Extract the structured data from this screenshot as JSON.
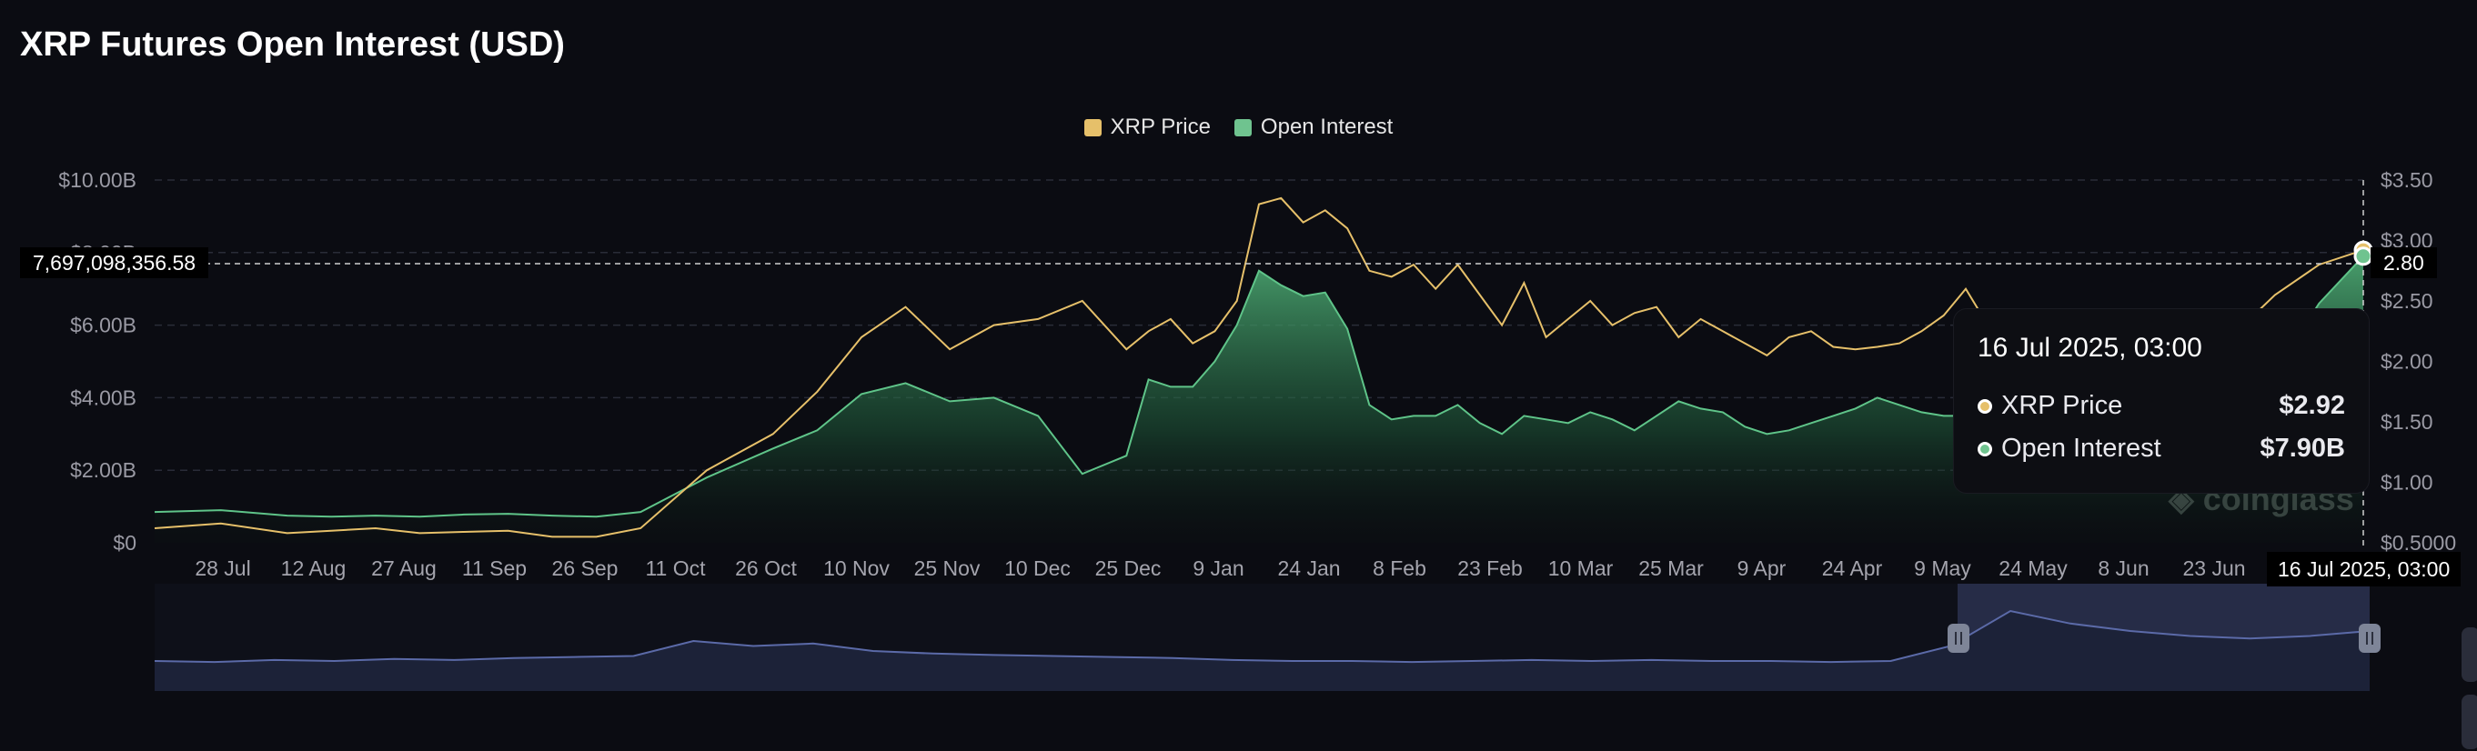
{
  "page_title": "XRP Futures Open Interest (USD)",
  "legend": [
    {
      "label": "XRP Price",
      "color": "#e6c06a"
    },
    {
      "label": "Open Interest",
      "color": "#6fc38f"
    }
  ],
  "crosshair": {
    "left_value": "7,697,098,356.58",
    "right_value": "2.80",
    "date_label": "16 Jul 2025, 03:00"
  },
  "tooltip": {
    "date": "16 Jul 2025, 03:00",
    "rows": [
      {
        "name": "XRP Price",
        "value": "$2.92",
        "color": "#e6c06a"
      },
      {
        "name": "Open Interest",
        "value": "$7.90B",
        "color": "#6fc38f"
      }
    ]
  },
  "watermark": "coinglass",
  "chart_data": {
    "type": "line",
    "title": "XRP Futures Open Interest (USD)",
    "x_ticks": [
      "28 Jul",
      "12 Aug",
      "27 Aug",
      "11 Sep",
      "26 Sep",
      "11 Oct",
      "26 Oct",
      "10 Nov",
      "25 Nov",
      "10 Dec",
      "25 Dec",
      "9 Jan",
      "24 Jan",
      "8 Feb",
      "23 Feb",
      "10 Mar",
      "25 Mar",
      "9 Apr",
      "24 Apr",
      "9 May",
      "24 May",
      "8 Jun",
      "23 Jun"
    ],
    "y_left": {
      "ticks": [
        "$0",
        "$2.00B",
        "$4.00B",
        "$6.00B",
        "$8.00B",
        "$10.00B"
      ],
      "range": [
        0,
        10
      ]
    },
    "y_right": {
      "ticks": [
        "$0.5000",
        "$1.00",
        "$1.50",
        "$2.00",
        "$2.50",
        "$3.00",
        "$3.50"
      ],
      "range": [
        0.5,
        3.5
      ]
    },
    "grid": true,
    "legend_position": "top-center",
    "series": [
      {
        "name": "XRP Price",
        "color": "#e6c06a",
        "x": [
          0,
          3,
          6,
          8,
          10,
          12,
          14,
          16,
          18,
          20,
          22,
          25,
          28,
          30,
          32,
          34,
          36,
          38,
          40,
          42,
          44,
          45,
          46,
          47,
          48,
          49,
          50,
          51,
          52,
          53,
          54,
          55,
          56,
          57,
          58,
          59,
          60,
          61,
          62,
          63,
          64,
          65,
          66,
          67,
          68,
          69,
          70,
          71,
          72,
          73,
          74,
          75,
          76,
          77,
          78,
          79,
          80,
          81,
          82,
          83,
          84,
          86,
          88,
          90,
          92,
          94,
          96,
          98,
          100
        ],
        "values": [
          0.62,
          0.66,
          0.58,
          0.6,
          0.62,
          0.58,
          0.59,
          0.6,
          0.55,
          0.55,
          0.62,
          1.1,
          1.4,
          1.75,
          2.2,
          2.45,
          2.1,
          2.3,
          2.35,
          2.5,
          2.1,
          2.25,
          2.35,
          2.15,
          2.25,
          2.5,
          3.3,
          3.35,
          3.15,
          3.25,
          3.1,
          2.75,
          2.7,
          2.8,
          2.6,
          2.8,
          2.55,
          2.3,
          2.65,
          2.2,
          2.35,
          2.5,
          2.3,
          2.4,
          2.45,
          2.2,
          2.35,
          2.25,
          2.15,
          2.05,
          2.2,
          2.25,
          2.12,
          2.1,
          2.12,
          2.15,
          2.25,
          2.38,
          2.6,
          2.3,
          2.15,
          2.15,
          2.25,
          2.2,
          2.25,
          2.2,
          2.55,
          2.8,
          2.92
        ]
      },
      {
        "name": "Open Interest",
        "color": "#6fc38f",
        "x": [
          0,
          3,
          6,
          8,
          10,
          12,
          14,
          16,
          18,
          20,
          22,
          25,
          28,
          30,
          32,
          34,
          36,
          38,
          40,
          42,
          44,
          45,
          46,
          47,
          48,
          49,
          50,
          51,
          52,
          53,
          54,
          55,
          56,
          57,
          58,
          59,
          60,
          61,
          62,
          63,
          64,
          65,
          66,
          67,
          68,
          69,
          70,
          71,
          72,
          73,
          74,
          75,
          76,
          77,
          78,
          79,
          80,
          81,
          82,
          83,
          84,
          86,
          88,
          90,
          92,
          94,
          96,
          98,
          100
        ],
        "values": [
          0.85,
          0.9,
          0.75,
          0.72,
          0.75,
          0.72,
          0.78,
          0.8,
          0.75,
          0.72,
          0.85,
          1.8,
          2.6,
          3.1,
          4.1,
          4.4,
          3.9,
          4.0,
          3.5,
          1.9,
          2.4,
          4.5,
          4.3,
          4.3,
          5.0,
          6.0,
          7.5,
          7.1,
          6.8,
          6.9,
          5.9,
          3.8,
          3.4,
          3.5,
          3.5,
          3.8,
          3.3,
          3.0,
          3.5,
          3.4,
          3.3,
          3.6,
          3.4,
          3.1,
          3.5,
          3.9,
          3.7,
          3.6,
          3.2,
          3.0,
          3.1,
          3.3,
          3.5,
          3.7,
          4.0,
          3.8,
          3.6,
          3.5,
          3.5,
          3.4,
          3.4,
          3.4,
          3.5,
          3.5,
          3.7,
          4.0,
          4.7,
          6.6,
          7.9
        ]
      }
    ],
    "navigator": {
      "values": [
        0.6,
        0.58,
        0.62,
        0.6,
        0.64,
        0.62,
        0.66,
        0.68,
        0.7,
        1.0,
        0.9,
        0.95,
        0.8,
        0.75,
        0.72,
        0.7,
        0.68,
        0.66,
        0.62,
        0.6,
        0.6,
        0.58,
        0.6,
        0.62,
        0.6,
        0.62,
        0.6,
        0.6,
        0.58,
        0.6,
        0.9,
        1.6,
        1.35,
        1.2,
        1.1,
        1.05,
        1.1,
        1.2
      ]
    }
  }
}
